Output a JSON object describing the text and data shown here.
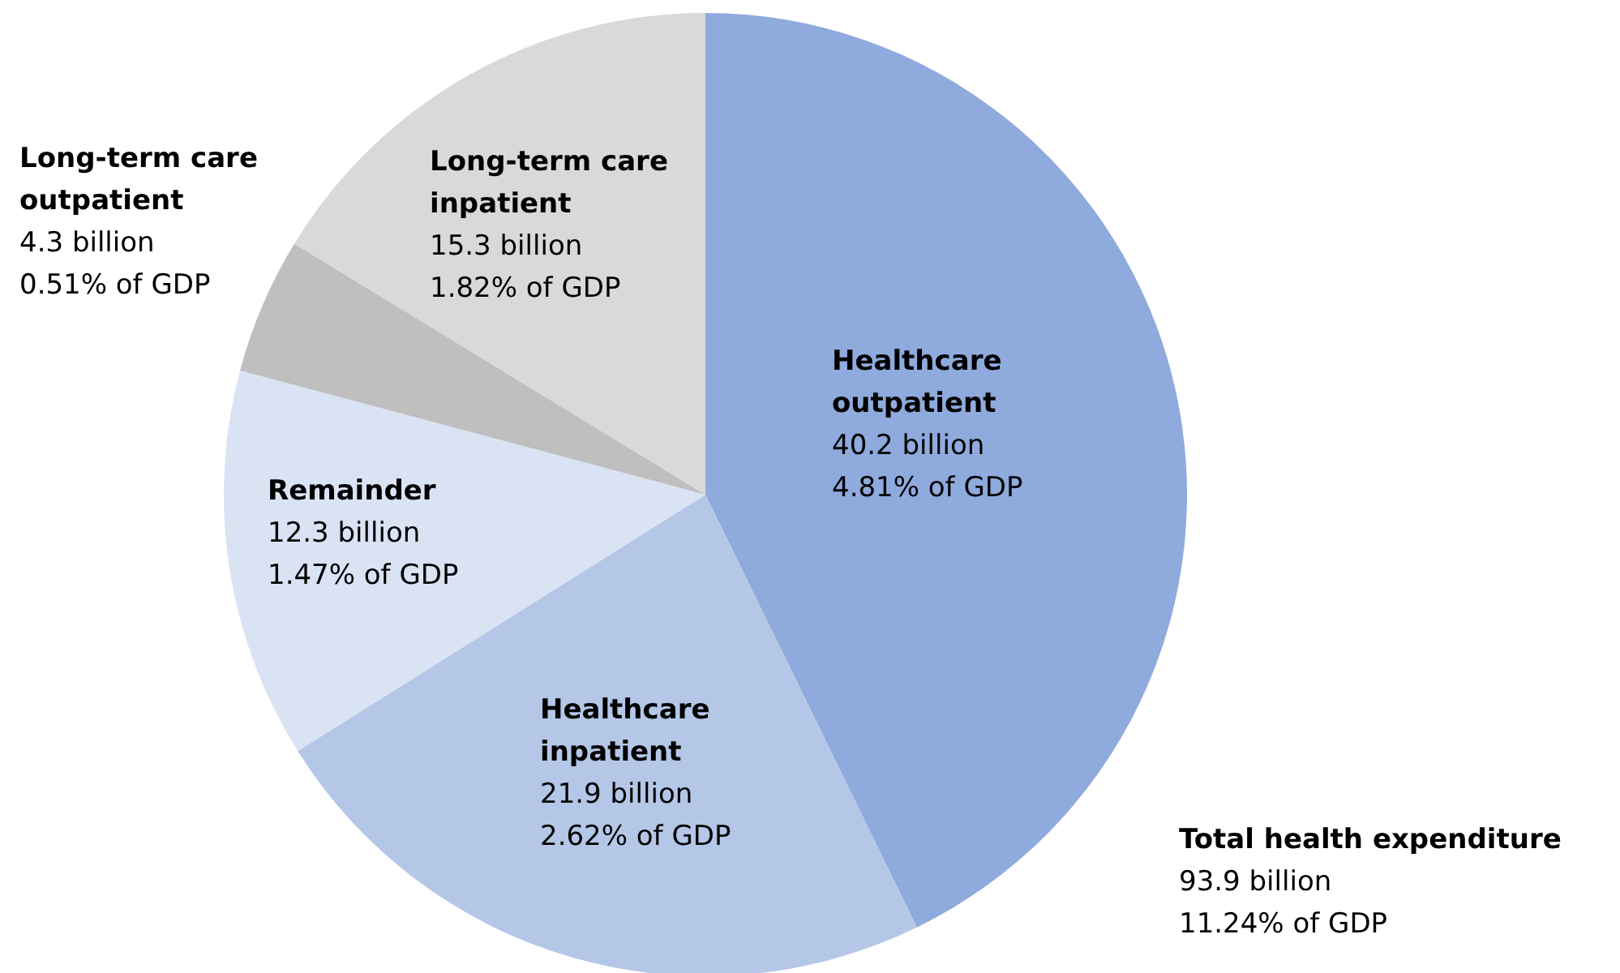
{
  "chart_data": {
    "type": "pie",
    "categories": [
      "Healthcare outpatient",
      "Healthcare inpatient",
      "Remainder",
      "Long-term care outpatient",
      "Long-term care inpatient"
    ],
    "values": [
      40.2,
      21.9,
      12.3,
      4.3,
      15.3
    ],
    "colors": [
      "#8faadc",
      "#b4c7e7",
      "#dae3f3",
      "#bfbfbf",
      "#d9d9d9"
    ],
    "value_labels": [
      "40.2 billion",
      "21.9 billion",
      "12.3 billion",
      "4.3 billion",
      "15.3 billion"
    ],
    "annotations": [
      "4.81% of GDP",
      "2.62% of GDP",
      "1.47% of GDP",
      "0.51% of GDP",
      "1.82%  of GDP",
      "Total health expenditure",
      "93.9 billion",
      "11.24% of GDP"
    ]
  }
}
